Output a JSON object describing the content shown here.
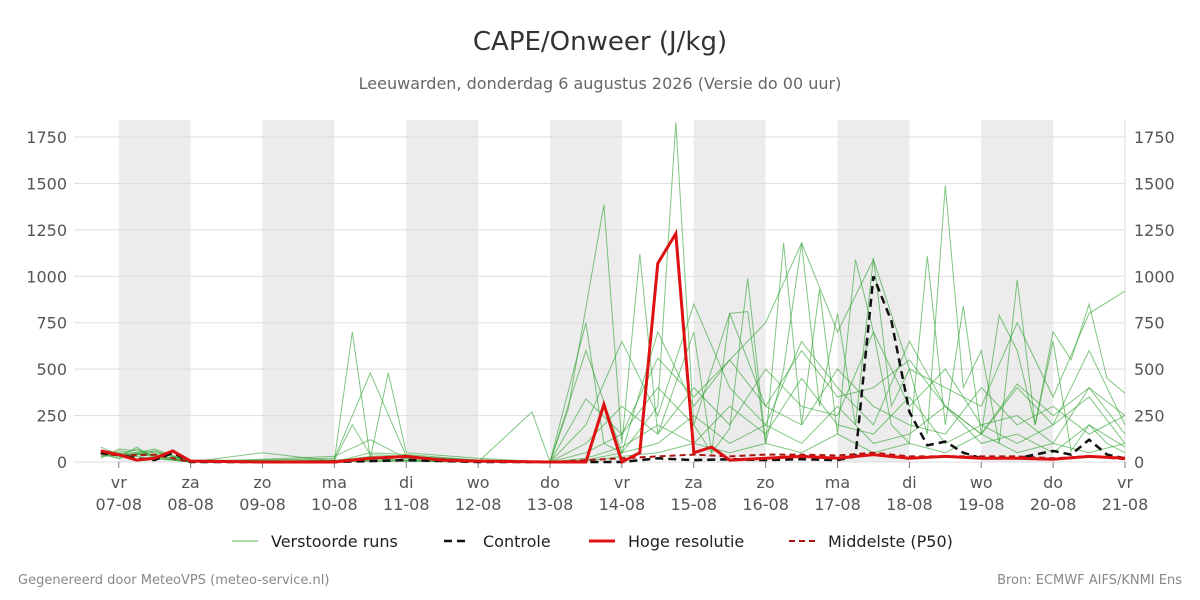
{
  "chart_data": {
    "type": "line",
    "title": "CAPE/Onweer (J/kg)",
    "subtitle": "Leeuwarden, donderdag  6 augustus 2026 (Versie do 00 uur)",
    "footer_left": "Gegenereerd door MeteoVPS (meteo-service.nl)",
    "footer_right": "Bron: ECMWF AIFS/KNMI Ens",
    "x_range": [
      6.6,
      21.0
    ],
    "ylim": [
      0,
      1850
    ],
    "y_ticks": [
      0,
      250,
      500,
      750,
      1000,
      1250,
      1500,
      1750
    ],
    "y_tick_labels": [
      "0",
      "250",
      "500",
      "750",
      "1000",
      "1250",
      "1500",
      "1750"
    ],
    "x_ticks": [
      {
        "x": 7,
        "day": "vr",
        "date": "07-08"
      },
      {
        "x": 8,
        "day": "za",
        "date": "08-08"
      },
      {
        "x": 9,
        "day": "zo",
        "date": "09-08"
      },
      {
        "x": 10,
        "day": "ma",
        "date": "10-08"
      },
      {
        "x": 11,
        "day": "di",
        "date": "11-08"
      },
      {
        "x": 12,
        "day": "wo",
        "date": "12-08"
      },
      {
        "x": 13,
        "day": "do",
        "date": "13-08"
      },
      {
        "x": 14,
        "day": "vr",
        "date": "14-08"
      },
      {
        "x": 15,
        "day": "za",
        "date": "15-08"
      },
      {
        "x": 16,
        "day": "zo",
        "date": "16-08"
      },
      {
        "x": 17,
        "day": "ma",
        "date": "17-08"
      },
      {
        "x": 18,
        "day": "di",
        "date": "18-08"
      },
      {
        "x": 19,
        "day": "wo",
        "date": "19-08"
      },
      {
        "x": 20,
        "day": "do",
        "date": "20-08"
      },
      {
        "x": 21,
        "day": "vr",
        "date": "21-08"
      }
    ],
    "shaded_days": [
      [
        7,
        8
      ],
      [
        9,
        10
      ],
      [
        11,
        12
      ],
      [
        13,
        14
      ],
      [
        15,
        16
      ],
      [
        17,
        18
      ],
      [
        19,
        20
      ]
    ],
    "grid": true,
    "legend_position": "bottom",
    "colors": {
      "ensemble": "#2ca02c",
      "control": "#111111",
      "hires": "#dd1111",
      "median": "#aa1111",
      "shade": "#ececec",
      "grid": "#dddddd"
    },
    "series": [
      {
        "name": "Verstoorde runs",
        "kind": "ensemble",
        "members": [
          {
            "x": [
              6.75,
              7.0,
              7.25,
              7.5,
              7.75,
              8.0,
              9.0,
              10.0,
              10.25,
              10.5,
              11.0,
              12.0,
              13.0,
              13.5,
              13.75,
              14.0,
              14.5,
              14.75,
              15.0,
              15.25,
              15.5,
              15.75,
              16.0,
              16.25,
              16.5,
              16.75,
              17.0,
              17.25,
              17.5,
              17.75,
              18.0,
              18.25,
              18.5,
              18.75,
              19.0,
              19.25,
              19.5,
              19.75,
              20.0,
              20.25,
              20.5,
              20.75,
              21.0
            ],
            "y": [
              60,
              40,
              70,
              30,
              10,
              0,
              0,
              10,
              200,
              40,
              30,
              10,
              0,
              750,
              100,
              50,
              300,
              1830,
              200,
              50,
              800,
              810,
              100,
              500,
              1180,
              300,
              800,
              200,
              1100,
              300,
              500,
              150,
              1490,
              400,
              600,
              100,
              980,
              200,
              650,
              60,
              200,
              100,
              50
            ]
          },
          {
            "x": [
              6.75,
              7.0,
              7.25,
              7.5,
              8.0,
              9.0,
              10.0,
              10.25,
              10.5,
              10.75,
              11.0,
              12.0,
              13.0,
              13.25,
              13.75,
              14.0,
              14.25,
              14.5,
              15.0,
              15.25,
              15.5,
              15.75,
              16.0,
              16.25,
              16.5,
              16.75,
              17.0,
              17.25,
              17.5,
              17.75,
              18.0,
              18.25,
              18.5,
              18.75,
              19.0,
              19.25,
              19.5,
              19.75,
              20.0,
              20.25,
              20.5,
              20.75,
              21.0
            ],
            "y": [
              40,
              20,
              80,
              20,
              0,
              0,
              10,
              700,
              20,
              480,
              50,
              20,
              0,
              280,
              1385,
              100,
              1120,
              150,
              700,
              50,
              180,
              990,
              100,
              1180,
              200,
              930,
              150,
              1090,
              700,
              200,
              100,
              1110,
              200,
              840,
              150,
              790,
              600,
              200,
              700,
              550,
              850,
              450,
              370
            ]
          },
          {
            "x": [
              6.75,
              7.0,
              7.5,
              8.0,
              10.0,
              10.5,
              11.0,
              12.0,
              13.0,
              13.5,
              14.0,
              14.5,
              15.0,
              15.5,
              16.0,
              16.5,
              17.0,
              17.5,
              18.0,
              18.5,
              19.0,
              19.5,
              20.0,
              20.5,
              21.0
            ],
            "y": [
              50,
              30,
              60,
              0,
              20,
              480,
              30,
              10,
              0,
              600,
              50,
              700,
              300,
              550,
              750,
              1180,
              700,
              1090,
              500,
              400,
              300,
              750,
              350,
              800,
              920
            ]
          },
          {
            "x": [
              6.75,
              7.0,
              7.5,
              8.0,
              10.0,
              10.5,
              11.0,
              12.0,
              13.0,
              13.5,
              14.0,
              14.5,
              15.0,
              15.5,
              16.0,
              16.5,
              17.0,
              17.5,
              18.0,
              18.5,
              19.0,
              19.5,
              20.0,
              20.5,
              21.0
            ],
            "y": [
              30,
              60,
              40,
              0,
              30,
              120,
              20,
              5,
              0,
              200,
              650,
              250,
              850,
              400,
              200,
              650,
              400,
              200,
              650,
              300,
              150,
              400,
              200,
              600,
              200
            ]
          },
          {
            "x": [
              6.75,
              7.0,
              7.5,
              8.0,
              10.0,
              10.5,
              11.0,
              12.0,
              13.0,
              13.5,
              14.0,
              14.5,
              15.0,
              15.5,
              16.0,
              16.5,
              17.0,
              17.5,
              18.0,
              18.5,
              19.0,
              19.5,
              20.0,
              20.5,
              21.0
            ],
            "y": [
              80,
              40,
              20,
              0,
              0,
              50,
              40,
              10,
              0,
              100,
              300,
              150,
              400,
              200,
              500,
              300,
              250,
              700,
              300,
              500,
              200,
              250,
              100,
              400,
              150
            ]
          },
          {
            "x": [
              6.75,
              7.0,
              7.5,
              8.0,
              10.0,
              10.5,
              11.0,
              12.0,
              13.0,
              13.5,
              14.0,
              14.5,
              15.0,
              15.5,
              16.0,
              16.5,
              17.0,
              17.5,
              18.0,
              18.5,
              19.0,
              19.5,
              20.0,
              20.5,
              21.0
            ],
            "y": [
              20,
              70,
              50,
              10,
              10,
              20,
              10,
              5,
              0,
              50,
              150,
              400,
              200,
              800,
              300,
              200,
              500,
              300,
              200,
              150,
              400,
              200,
              300,
              150,
              250
            ]
          },
          {
            "x": [
              6.75,
              7.0,
              7.5,
              8.0,
              10.0,
              10.5,
              11.0,
              12.0,
              13.0,
              13.5,
              14.0,
              14.5,
              15.0,
              15.5,
              16.0,
              16.5,
              17.0,
              17.5,
              18.0,
              18.5,
              19.0,
              19.5,
              20.0,
              20.5,
              21.0
            ],
            "y": [
              60,
              30,
              70,
              0,
              5,
              30,
              20,
              0,
              0,
              20,
              80,
              200,
              100,
              300,
              150,
              450,
              200,
              150,
              350,
              100,
              200,
              100,
              200,
              350,
              100
            ]
          },
          {
            "x": [
              6.75,
              7.0,
              7.5,
              8.0,
              10.0,
              10.5,
              11.0,
              12.0,
              13.0,
              13.5,
              14.0,
              14.5,
              15.0,
              15.5,
              16.0,
              16.5,
              17.0,
              17.5,
              18.0,
              18.5,
              19.0,
              19.5,
              20.0,
              20.5,
              21.0
            ],
            "y": [
              40,
              50,
              30,
              5,
              0,
              10,
              10,
              0,
              0,
              10,
              50,
              100,
              250,
              100,
              200,
              100,
              300,
              100,
              150,
              300,
              100,
              150,
              50,
              200,
              80
            ]
          },
          {
            "x": [
              6.75,
              7.0,
              7.5,
              8.0,
              10.0,
              10.5,
              11.0,
              12.0,
              13.0,
              13.5,
              14.0,
              14.5,
              15.0,
              15.5,
              16.0,
              16.5,
              17.0,
              17.5,
              18.0,
              18.5,
              19.0,
              19.5,
              20.0,
              20.5,
              21.0
            ],
            "y": [
              50,
              20,
              60,
              0,
              0,
              5,
              5,
              0,
              0,
              5,
              30,
              50,
              100,
              50,
              100,
              50,
              150,
              50,
              100,
              50,
              150,
              50,
              100,
              50,
              100
            ]
          },
          {
            "x": [
              6.75,
              7.0,
              7.5,
              8.0,
              9.0,
              10.0,
              11.0,
              12.0,
              12.75,
              13.0,
              13.5,
              14.0,
              14.5,
              15.0,
              15.5,
              16.0,
              16.5,
              17.0,
              17.5,
              18.0,
              18.5,
              19.0,
              19.5,
              20.0,
              20.5,
              21.0
            ],
            "y": [
              30,
              40,
              40,
              0,
              50,
              5,
              5,
              0,
              270,
              0,
              340,
              150,
              560,
              350,
              550,
              300,
              600,
              350,
              400,
              550,
              300,
              150,
              420,
              250,
              400,
              250
            ]
          }
        ]
      },
      {
        "name": "Controle",
        "kind": "control",
        "x": [
          6.75,
          7.0,
          7.25,
          7.5,
          7.75,
          8.0,
          9.0,
          10.0,
          11.0,
          12.0,
          13.0,
          14.0,
          14.5,
          15.0,
          15.5,
          16.0,
          16.5,
          17.0,
          17.25,
          17.5,
          17.75,
          18.0,
          18.25,
          18.5,
          18.75,
          19.0,
          19.5,
          20.0,
          20.25,
          20.5,
          20.75,
          21.0
        ],
        "y": [
          50,
          40,
          20,
          10,
          50,
          0,
          0,
          0,
          10,
          0,
          0,
          0,
          20,
          10,
          15,
          10,
          15,
          10,
          30,
          1000,
          760,
          270,
          90,
          110,
          50,
          20,
          20,
          60,
          40,
          120,
          40,
          20
        ]
      },
      {
        "name": "Hoge resolutie",
        "kind": "hires",
        "x": [
          6.75,
          7.0,
          7.25,
          7.5,
          7.75,
          8.0,
          9.0,
          10.0,
          10.5,
          11.0,
          11.5,
          12.0,
          13.0,
          13.5,
          13.75,
          14.0,
          14.25,
          14.5,
          14.75,
          15.0,
          15.25,
          15.5,
          16.0,
          16.5,
          17.0,
          17.5,
          18.0,
          18.5,
          19.0,
          19.5,
          20.0,
          20.5,
          21.0
        ],
        "y": [
          60,
          40,
          10,
          20,
          60,
          5,
          0,
          0,
          20,
          30,
          10,
          5,
          0,
          0,
          310,
          0,
          50,
          1070,
          1230,
          50,
          80,
          10,
          20,
          30,
          20,
          40,
          20,
          30,
          20,
          20,
          15,
          30,
          20
        ]
      },
      {
        "name": "Middelste (P50)",
        "kind": "median",
        "x": [
          6.75,
          7.0,
          7.5,
          8.0,
          9.0,
          10.0,
          10.5,
          11.0,
          12.0,
          13.0,
          14.0,
          14.5,
          15.0,
          15.5,
          16.0,
          16.5,
          17.0,
          17.5,
          18.0,
          18.5,
          19.0,
          19.5,
          20.0,
          20.5,
          21.0
        ],
        "y": [
          45,
          35,
          40,
          0,
          0,
          5,
          20,
          25,
          5,
          0,
          20,
          30,
          40,
          30,
          40,
          40,
          35,
          50,
          30,
          30,
          30,
          30,
          20,
          30,
          15
        ]
      }
    ],
    "legend": [
      {
        "kind": "ensemble",
        "label": "Verstoorde runs"
      },
      {
        "kind": "control",
        "label": "Controle"
      },
      {
        "kind": "hires",
        "label": "Hoge resolutie"
      },
      {
        "kind": "median",
        "label": "Middelste (P50)"
      }
    ]
  }
}
